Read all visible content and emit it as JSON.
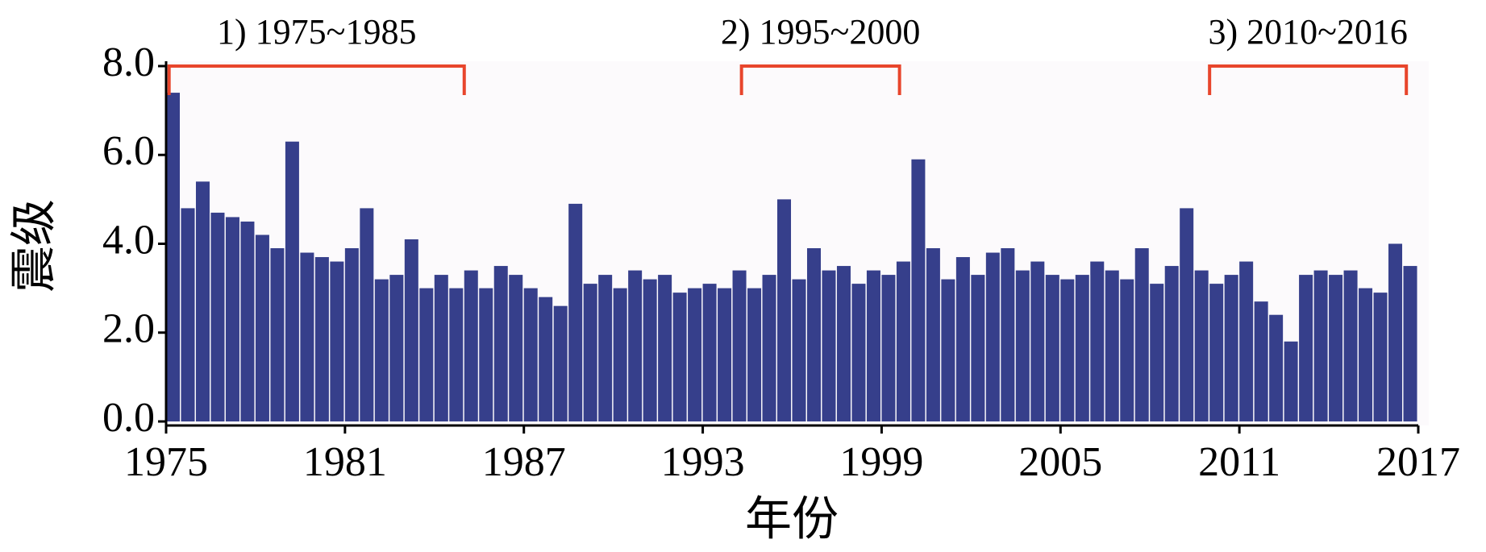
{
  "chart_data": {
    "type": "bar",
    "xlabel": "年份",
    "ylabel": "震级",
    "x": [
      1975.0,
      1975.5,
      1976.0,
      1976.5,
      1977.0,
      1977.5,
      1978.0,
      1978.5,
      1979.0,
      1979.5,
      1980.0,
      1980.5,
      1981.0,
      1981.5,
      1982.0,
      1982.5,
      1983.0,
      1983.5,
      1984.0,
      1984.5,
      1985.0,
      1985.5,
      1986.0,
      1986.5,
      1987.0,
      1987.5,
      1988.0,
      1988.5,
      1989.0,
      1989.5,
      1990.0,
      1990.5,
      1991.0,
      1991.5,
      1992.0,
      1992.5,
      1993.0,
      1993.5,
      1994.0,
      1994.5,
      1995.0,
      1995.5,
      1996.0,
      1996.5,
      1997.0,
      1997.5,
      1998.0,
      1998.5,
      1999.0,
      1999.5,
      2000.0,
      2000.5,
      2001.0,
      2001.5,
      2002.0,
      2002.5,
      2003.0,
      2003.5,
      2004.0,
      2004.5,
      2005.0,
      2005.5,
      2006.0,
      2006.5,
      2007.0,
      2007.5,
      2008.0,
      2008.5,
      2009.0,
      2009.5,
      2010.0,
      2010.5,
      2011.0,
      2011.5,
      2012.0,
      2012.5,
      2013.0,
      2013.5,
      2014.0,
      2014.5,
      2015.0,
      2015.5,
      2016.0,
      2016.5
    ],
    "values": [
      7.4,
      4.8,
      5.4,
      4.7,
      4.6,
      4.5,
      4.2,
      3.9,
      6.3,
      3.8,
      3.7,
      3.6,
      3.9,
      4.8,
      3.2,
      3.3,
      4.1,
      3.0,
      3.3,
      3.0,
      3.4,
      3.0,
      3.5,
      3.3,
      3.0,
      2.8,
      2.6,
      4.9,
      3.1,
      3.3,
      3.0,
      3.4,
      3.2,
      3.3,
      2.9,
      3.0,
      3.1,
      3.0,
      3.4,
      3.0,
      3.3,
      5.0,
      3.2,
      3.9,
      3.4,
      3.5,
      3.1,
      3.4,
      3.3,
      3.6,
      5.9,
      3.9,
      3.2,
      3.7,
      3.3,
      3.8,
      3.9,
      3.4,
      3.6,
      3.3,
      3.2,
      3.3,
      3.6,
      3.4,
      3.2,
      3.9,
      3.1,
      3.5,
      4.8,
      3.4,
      3.1,
      3.3,
      3.6,
      2.7,
      2.4,
      1.8,
      3.3,
      3.4,
      3.3,
      3.4,
      3.0,
      2.9,
      4.0,
      3.5
    ],
    "color": "#363f8b",
    "xlim": [
      1975,
      2017
    ],
    "xticks": [
      1975,
      1981,
      1987,
      1993,
      1999,
      2005,
      2011,
      2017
    ],
    "ylim": [
      0,
      8
    ],
    "yticks": [
      {
        "value": 0,
        "label": "0.0"
      },
      {
        "value": 2,
        "label": "2.0"
      },
      {
        "value": 4,
        "label": "4.0"
      },
      {
        "value": 6,
        "label": "6.0"
      },
      {
        "value": 8,
        "label": "8.0"
      }
    ],
    "annotations": [
      {
        "text": "1) 1975~1985",
        "xrange": [
          1975.1,
          1985.0
        ],
        "color": "#e8452c"
      },
      {
        "text": "2) 1995~2000",
        "xrange": [
          1994.3,
          1999.6
        ],
        "color": "#e8452c"
      },
      {
        "text": "3) 2010~2016",
        "xrange": [
          2010.0,
          2016.6
        ],
        "color": "#e8452c"
      }
    ]
  }
}
